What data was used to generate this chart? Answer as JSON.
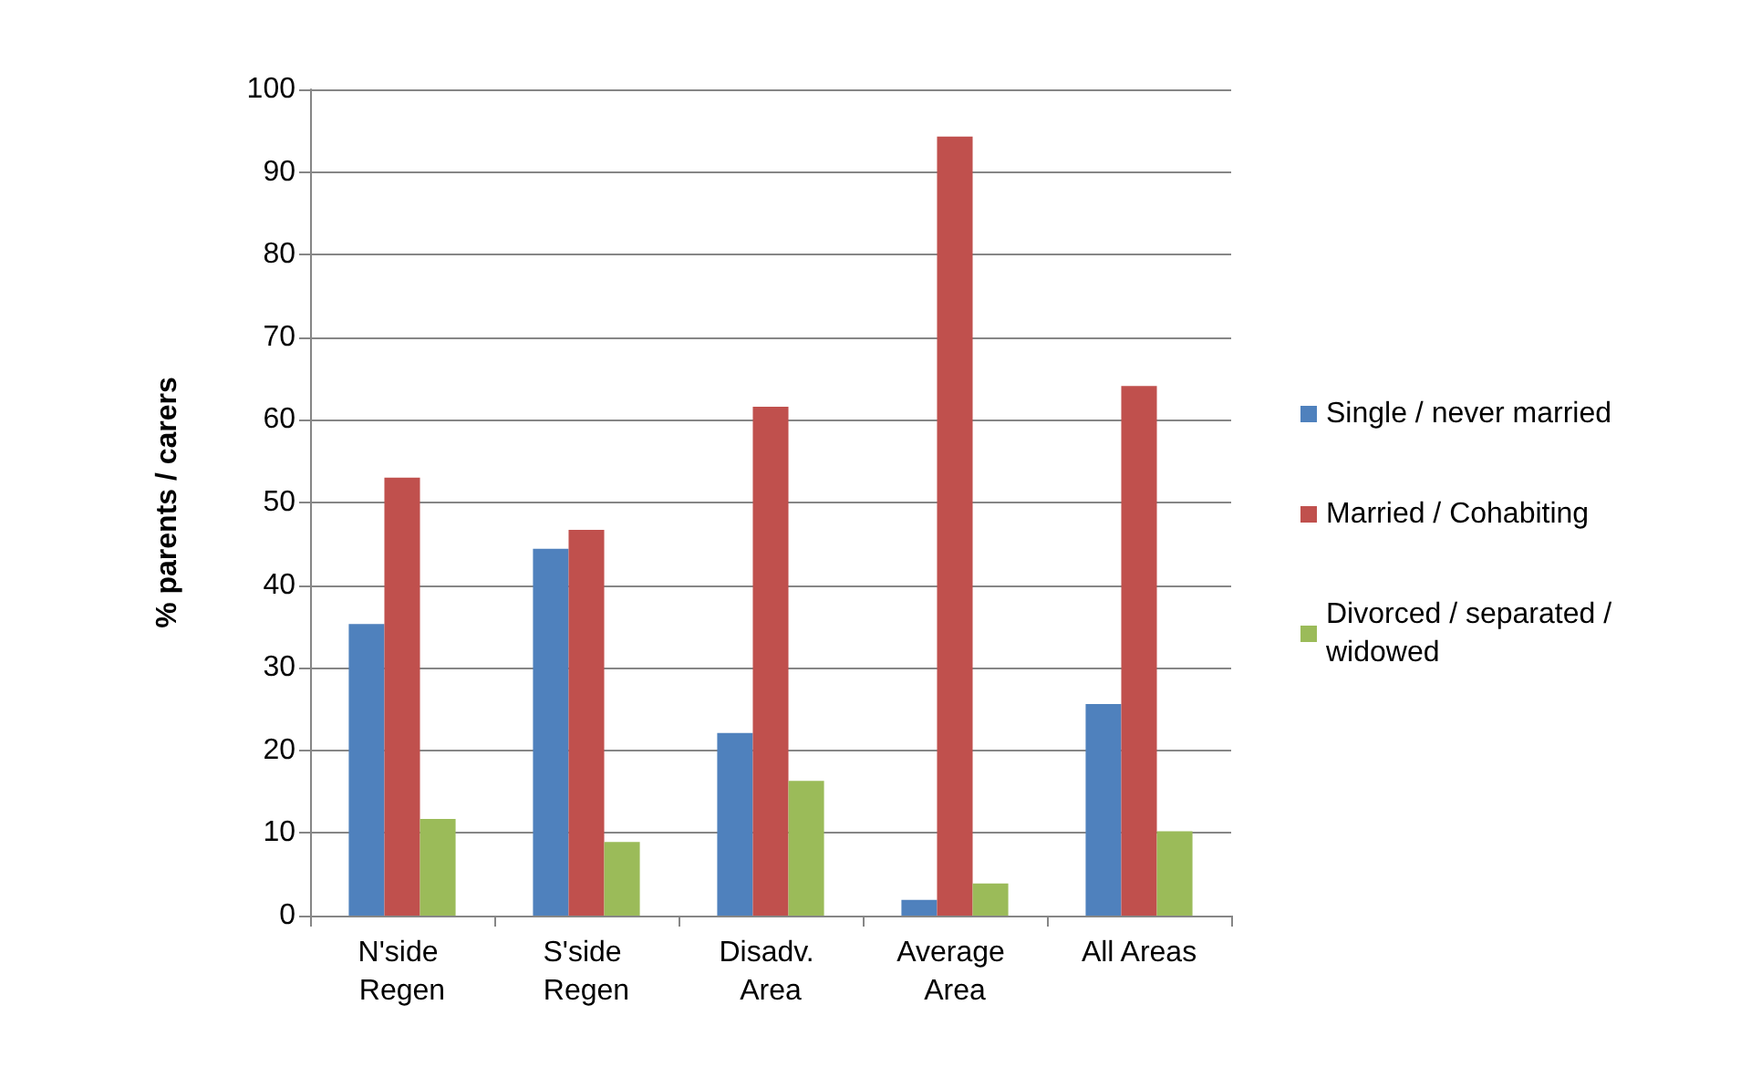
{
  "chart_data": {
    "type": "bar",
    "ylabel": "% parents / carers",
    "categories": [
      "N'side Regen",
      "S'side Regen",
      "Disadv. Area",
      "Average Area",
      "All Areas"
    ],
    "series": [
      {
        "name": "Single / never married",
        "color": "#4f81bd",
        "values": [
          35.3,
          44.4,
          22.1,
          1.9,
          25.6
        ]
      },
      {
        "name": "Married / Cohabiting",
        "color": "#c0504d",
        "values": [
          53,
          46.7,
          61.6,
          94.3,
          64.1
        ]
      },
      {
        "name": "Divorced / separated / widowed",
        "color": "#9bbb59",
        "values": [
          11.7,
          8.9,
          16.3,
          3.9,
          10.2
        ]
      }
    ],
    "ylim": [
      0,
      100
    ],
    "yticks": [
      0,
      10,
      20,
      30,
      40,
      50,
      60,
      70,
      80,
      90,
      100
    ],
    "grid": "y",
    "legend": "right"
  }
}
